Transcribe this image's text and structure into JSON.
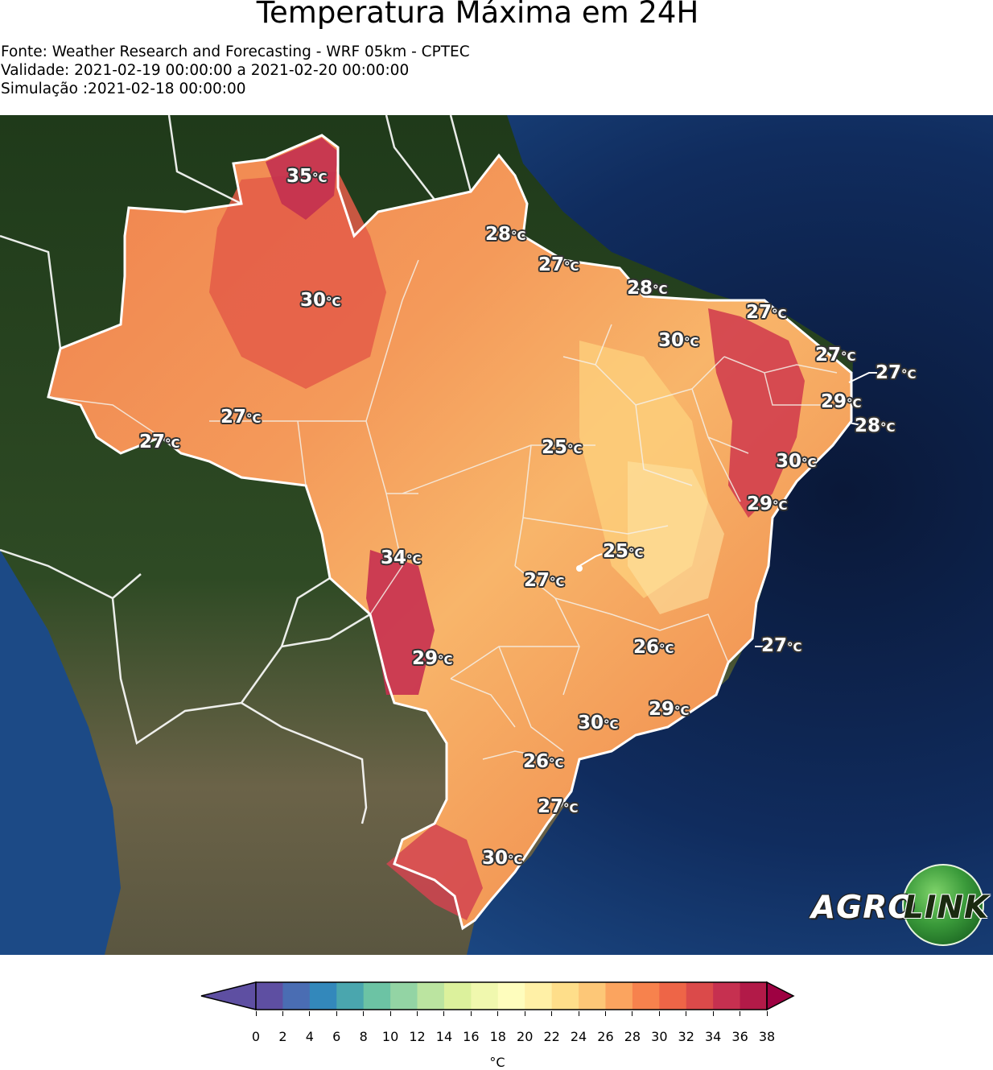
{
  "title": "Temperatura Máxima em 24H",
  "source": "Fonte: Weather Research and Forecasting - WRF 05km - CPTEC",
  "validity": "Validade: 2021-02-19 00:00:00 a 2021-02-20 00:00:00",
  "simulation": "Simulação :2021-02-18 00:00:00",
  "map_labels": [
    {
      "value": "35",
      "unit": "°C"
    },
    {
      "value": "28",
      "unit": "°C"
    },
    {
      "value": "27",
      "unit": "°C"
    },
    {
      "value": "30",
      "unit": "°C"
    },
    {
      "value": "28",
      "unit": "°C"
    },
    {
      "value": "27",
      "unit": "°C"
    },
    {
      "value": "30",
      "unit": "°C"
    },
    {
      "value": "27",
      "unit": "°C"
    },
    {
      "value": "27",
      "unit": "°C"
    },
    {
      "value": "29",
      "unit": "°C"
    },
    {
      "value": "28",
      "unit": "°C"
    },
    {
      "value": "27",
      "unit": "°C"
    },
    {
      "value": "27",
      "unit": "°C"
    },
    {
      "value": "25",
      "unit": "°C"
    },
    {
      "value": "30",
      "unit": "°C"
    },
    {
      "value": "29",
      "unit": "°C"
    },
    {
      "value": "34",
      "unit": "°C"
    },
    {
      "value": "25",
      "unit": "°C"
    },
    {
      "value": "27",
      "unit": "°C"
    },
    {
      "value": "26",
      "unit": "°C"
    },
    {
      "value": "27",
      "unit": "°C"
    },
    {
      "value": "29",
      "unit": "°C"
    },
    {
      "value": "29",
      "unit": "°C"
    },
    {
      "value": "30",
      "unit": "°C"
    },
    {
      "value": "26",
      "unit": "°C"
    },
    {
      "value": "27",
      "unit": "°C"
    },
    {
      "value": "30",
      "unit": "°C"
    }
  ],
  "logo": {
    "part1": "AGRO",
    "part2": "LINK"
  },
  "colorbar": {
    "ticks": [
      "0",
      "2",
      "4",
      "6",
      "8",
      "10",
      "12",
      "14",
      "16",
      "18",
      "20",
      "22",
      "24",
      "26",
      "28",
      "30",
      "32",
      "34",
      "36",
      "38"
    ],
    "unit": "°C",
    "colors": [
      "#5e4fa2",
      "#4a6db3",
      "#3388bb",
      "#4aa6ae",
      "#6cc3a4",
      "#93d4a4",
      "#bbe4a0",
      "#dcf19c",
      "#f0f8ae",
      "#fefdbd",
      "#fff0a6",
      "#fede8a",
      "#fdc777",
      "#fba45f",
      "#f7824d",
      "#ee6547",
      "#db4a4a",
      "#c63050",
      "#b21a48",
      "#9e0142"
    ],
    "under_color": "#5e4fa2",
    "over_color": "#9e0142"
  },
  "colors": {
    "ocean": "#0c2450",
    "land": "#2d4a22",
    "borders": "#ffffff"
  }
}
